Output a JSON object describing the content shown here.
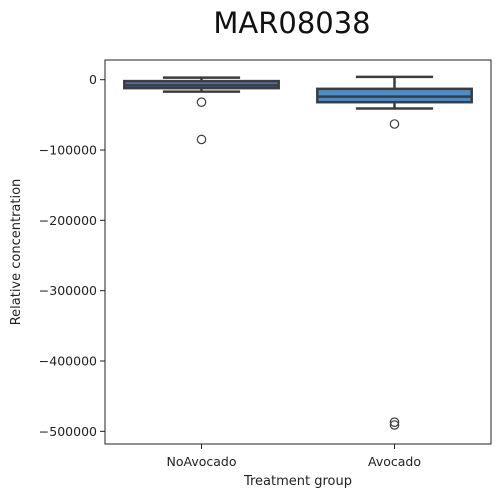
{
  "chart_data": {
    "type": "box",
    "title": "MAR08038",
    "xlabel": "Treatment group",
    "ylabel": "Relative concentration",
    "ylim": [
      -518000,
      28000
    ],
    "yticks": [
      0,
      -100000,
      -200000,
      -300000,
      -400000,
      -500000
    ],
    "ytick_labels": [
      "0",
      "−100000",
      "−200000",
      "−300000",
      "−400000",
      "−500000"
    ],
    "grid": false,
    "categories": [
      "NoAvocado",
      "Avocado"
    ],
    "boxes": [
      {
        "category": "NoAvocado",
        "whisker_low": -17000,
        "q1": -12000,
        "median": -8000,
        "q3": -2000,
        "whisker_high": 3000,
        "outliers": [
          -32000,
          -85000
        ],
        "color": "#4c72b0"
      },
      {
        "category": "Avocado",
        "whisker_low": -41000,
        "q1": -32000,
        "median": -24000,
        "q3": -13000,
        "whisker_high": 4000,
        "outliers": [
          -63000,
          -487000,
          -491000
        ],
        "color": "#4c8cc7"
      }
    ]
  }
}
